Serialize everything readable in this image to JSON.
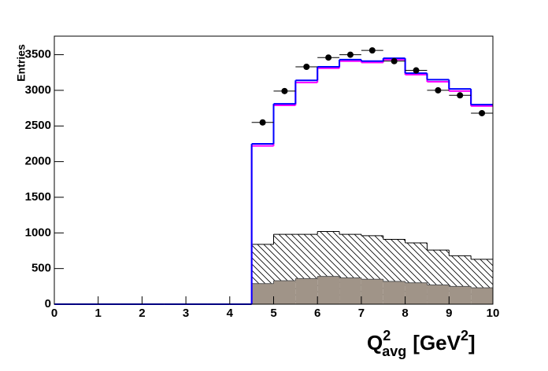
{
  "chart_data": {
    "type": "histogram",
    "y_label": "Entries",
    "x_label_parts": [
      "Q",
      "2",
      "avg",
      "[GeV",
      "2",
      "]"
    ],
    "xlim": [
      0,
      10
    ],
    "xticks": [
      0,
      1,
      2,
      3,
      4,
      5,
      6,
      7,
      8,
      9,
      10
    ],
    "ylim": [
      0,
      3760
    ],
    "yticks": [
      0,
      500,
      1000,
      1500,
      2000,
      2500,
      3000,
      3500
    ],
    "bins": [
      0,
      0.5,
      1,
      1.5,
      2,
      2.5,
      3,
      3.5,
      4,
      4.5,
      5,
      5.5,
      6,
      6.5,
      7,
      7.5,
      8,
      8.5,
      9,
      9.5,
      10
    ],
    "series": [
      {
        "style": "hatched",
        "color": "#000000",
        "values": [
          0,
          0,
          0,
          0,
          0,
          0,
          0,
          0,
          0,
          840,
          980,
          980,
          1020,
          980,
          960,
          910,
          860,
          760,
          680,
          630
        ]
      },
      {
        "style": "filled",
        "color": "#a09488",
        "values": [
          0,
          0,
          0,
          0,
          0,
          0,
          0,
          0,
          0,
          290,
          330,
          360,
          390,
          370,
          350,
          320,
          300,
          270,
          250,
          230
        ]
      },
      {
        "style": "line",
        "color": "#ff00ff",
        "values": [
          0,
          0,
          0,
          0,
          0,
          0,
          0,
          0,
          0,
          2220,
          2790,
          3110,
          3310,
          3410,
          3390,
          3430,
          3220,
          3120,
          2990,
          2780
        ]
      },
      {
        "style": "line",
        "color": "#0000ff",
        "values": [
          0,
          0,
          0,
          0,
          0,
          0,
          0,
          0,
          0,
          2250,
          2810,
          3140,
          3330,
          3430,
          3410,
          3450,
          3240,
          3150,
          3020,
          2800
        ]
      }
    ],
    "points": {
      "color": "#000000",
      "xerr": 0.25,
      "x": [
        4.75,
        5.25,
        5.75,
        6.25,
        6.75,
        7.25,
        7.75,
        8.25,
        8.75,
        9.25,
        9.75
      ],
      "values": [
        2550,
        2990,
        3330,
        3460,
        3500,
        3560,
        3410,
        3280,
        3000,
        2930,
        2680
      ]
    }
  }
}
